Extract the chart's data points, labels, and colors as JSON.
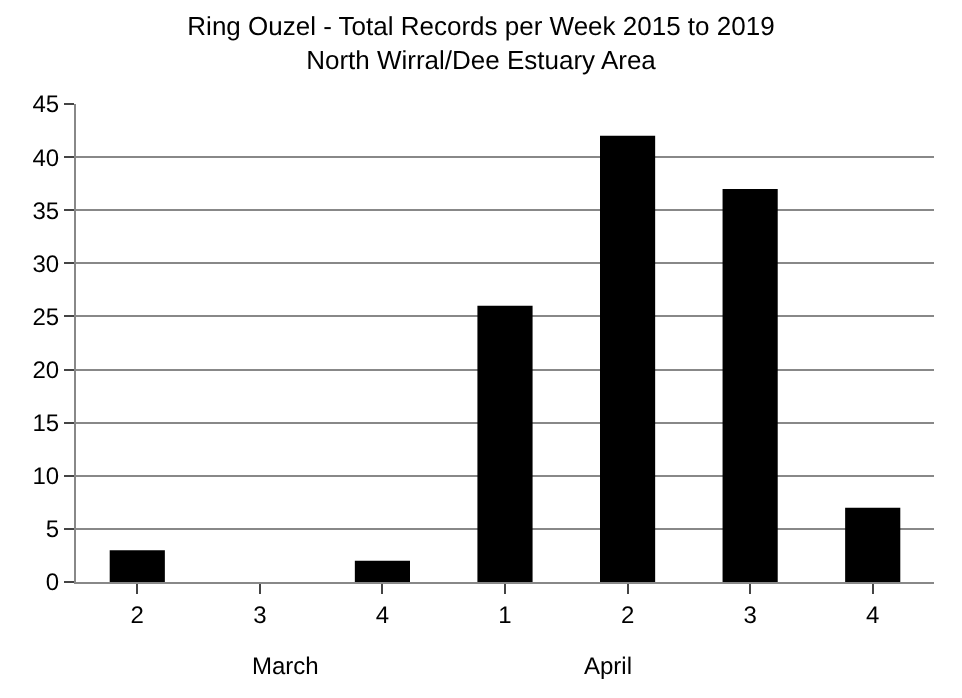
{
  "chart_data": {
    "type": "bar",
    "title": "Ring Ouzel - Total Records per Week 2015 to 2019\nNorth Wirral/Dee Estuary Area",
    "categories": [
      "2",
      "3",
      "4",
      "1",
      "2",
      "3",
      "4"
    ],
    "values": [
      3,
      0,
      2,
      26,
      42,
      37,
      7
    ],
    "color": "#000000",
    "ylim": [
      0,
      45
    ],
    "yticks": [
      0,
      5,
      10,
      15,
      20,
      25,
      30,
      35,
      40,
      45
    ],
    "grid": "y",
    "annotations": [
      "March",
      "April"
    ]
  }
}
